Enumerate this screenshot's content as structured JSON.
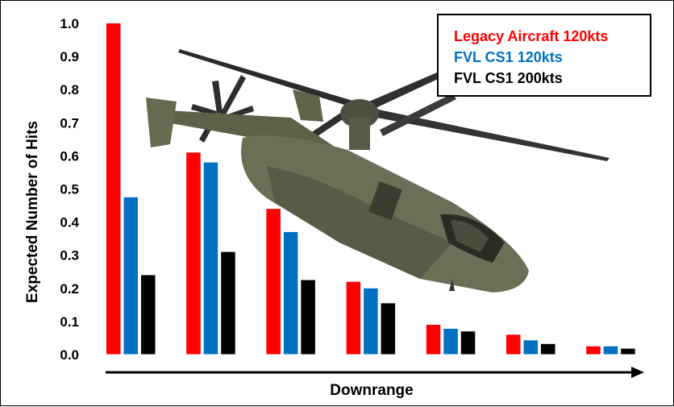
{
  "chart_data": {
    "type": "bar",
    "ylabel": "Expected Number of Hits",
    "xlabel": "Downrange",
    "ylim": [
      0,
      1.0
    ],
    "yticks": [
      "0.0",
      "0.1",
      "0.2",
      "0.3",
      "0.4",
      "0.5",
      "0.6",
      "0.7",
      "0.8",
      "0.9",
      "1.0"
    ],
    "grid": false,
    "legend_position": "top-right",
    "categories": [
      "",
      "",
      "",
      "",
      "",
      "",
      ""
    ],
    "series": [
      {
        "name": "Legacy Aircraft 120kts",
        "color": "#ff0000",
        "values": [
          1.0,
          0.61,
          0.44,
          0.22,
          0.09,
          0.06,
          0.025
        ]
      },
      {
        "name": "FVL CS1 120kts",
        "color": "#0070c0",
        "values": [
          0.475,
          0.58,
          0.37,
          0.2,
          0.078,
          0.043,
          0.025
        ]
      },
      {
        "name": "FVL CS1 200kts",
        "color": "#000000",
        "values": [
          0.24,
          0.31,
          0.225,
          0.155,
          0.07,
          0.032,
          0.018
        ]
      }
    ],
    "annotations": [
      "Downrange arrow pointing right"
    ],
    "image": "tiltrotor-helicopter-illustration"
  }
}
